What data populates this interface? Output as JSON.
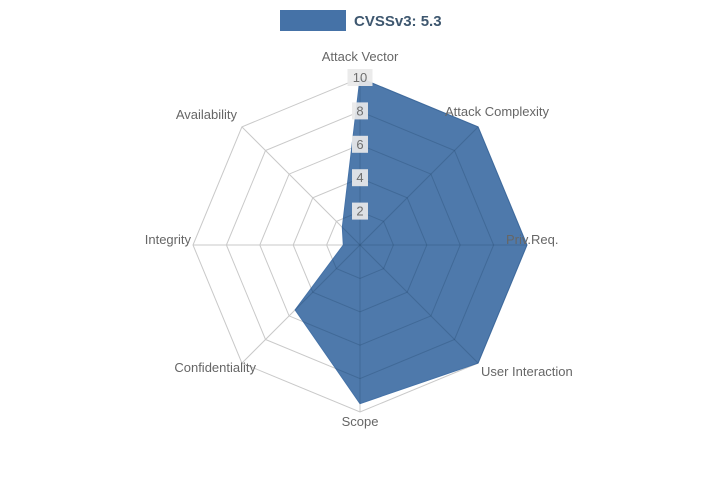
{
  "legend": {
    "label": "CVSSv3: 5.3"
  },
  "chart_data": {
    "type": "radar",
    "categories": [
      "Attack Vector",
      "Attack Complexity",
      "Priv.Req.",
      "User Interaction",
      "Scope",
      "Confidentiality",
      "Integrity",
      "Availability"
    ],
    "series": [
      {
        "name": "CVSSv3: 5.3",
        "values": [
          10,
          10,
          10,
          10,
          9.5,
          5.5,
          1,
          1.5
        ],
        "color": "#4572A7"
      }
    ],
    "ticks": [
      2,
      4,
      6,
      8,
      10
    ],
    "rlim": [
      0,
      10
    ],
    "grid": true,
    "legend_position": "top-center"
  },
  "colors": {
    "series_fill": "#4572A7",
    "grid_line": "#C9C9C9",
    "axis_label": "#666666",
    "tick_text": "#6E6E6E",
    "tick_bg": "#E9E9E9",
    "legend_text": "#3E576F",
    "background": "#FFFFFF"
  }
}
